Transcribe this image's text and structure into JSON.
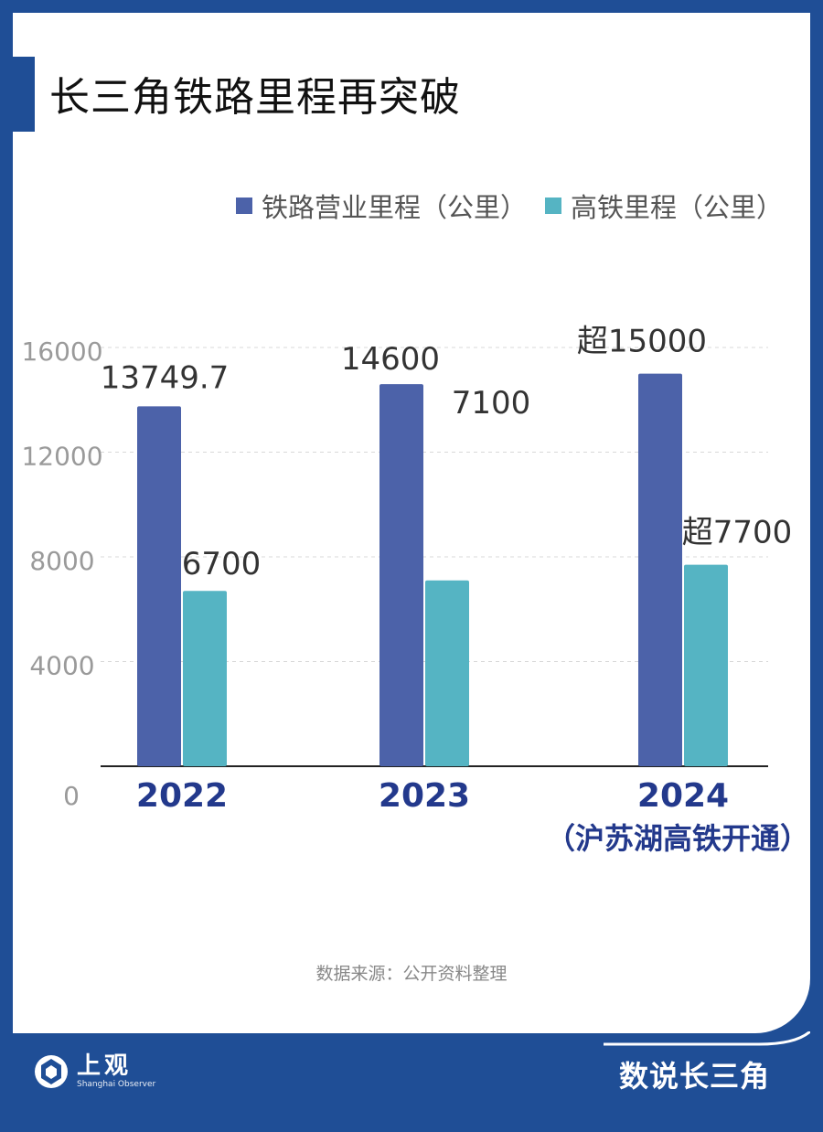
{
  "title": "长三角铁路里程再突破",
  "source": "数据来源：公开资料整理",
  "brand": "数说长三角",
  "logo": {
    "cn": "上观",
    "en": "Shanghai Observer",
    "icon": "shanghai-observer-logo-icon"
  },
  "colors": {
    "page_bg": "#1f4e96",
    "series_railway": "#4c62a9",
    "series_hsr": "#55b4c3",
    "category_text": "#23398c"
  },
  "chart_data": {
    "type": "bar",
    "title": "长三角铁路里程再突破",
    "categories": [
      "2022",
      "2023",
      "2024"
    ],
    "category_notes": [
      "",
      "",
      "（沪苏湖高铁开通）"
    ],
    "series": [
      {
        "name": "铁路营业里程（公里）",
        "values": [
          13749.7,
          14600,
          15000
        ],
        "labels": [
          "13749.7",
          "14600",
          "超15000"
        ]
      },
      {
        "name": "高铁里程（公里）",
        "values": [
          6700,
          7100,
          7700
        ],
        "labels": [
          "6700",
          "7100",
          "超7700"
        ]
      }
    ],
    "yticks": [
      "0",
      "4000",
      "8000",
      "12000",
      "16000"
    ],
    "ylim": [
      0,
      16000
    ],
    "grid": true,
    "legend": "top-right"
  }
}
